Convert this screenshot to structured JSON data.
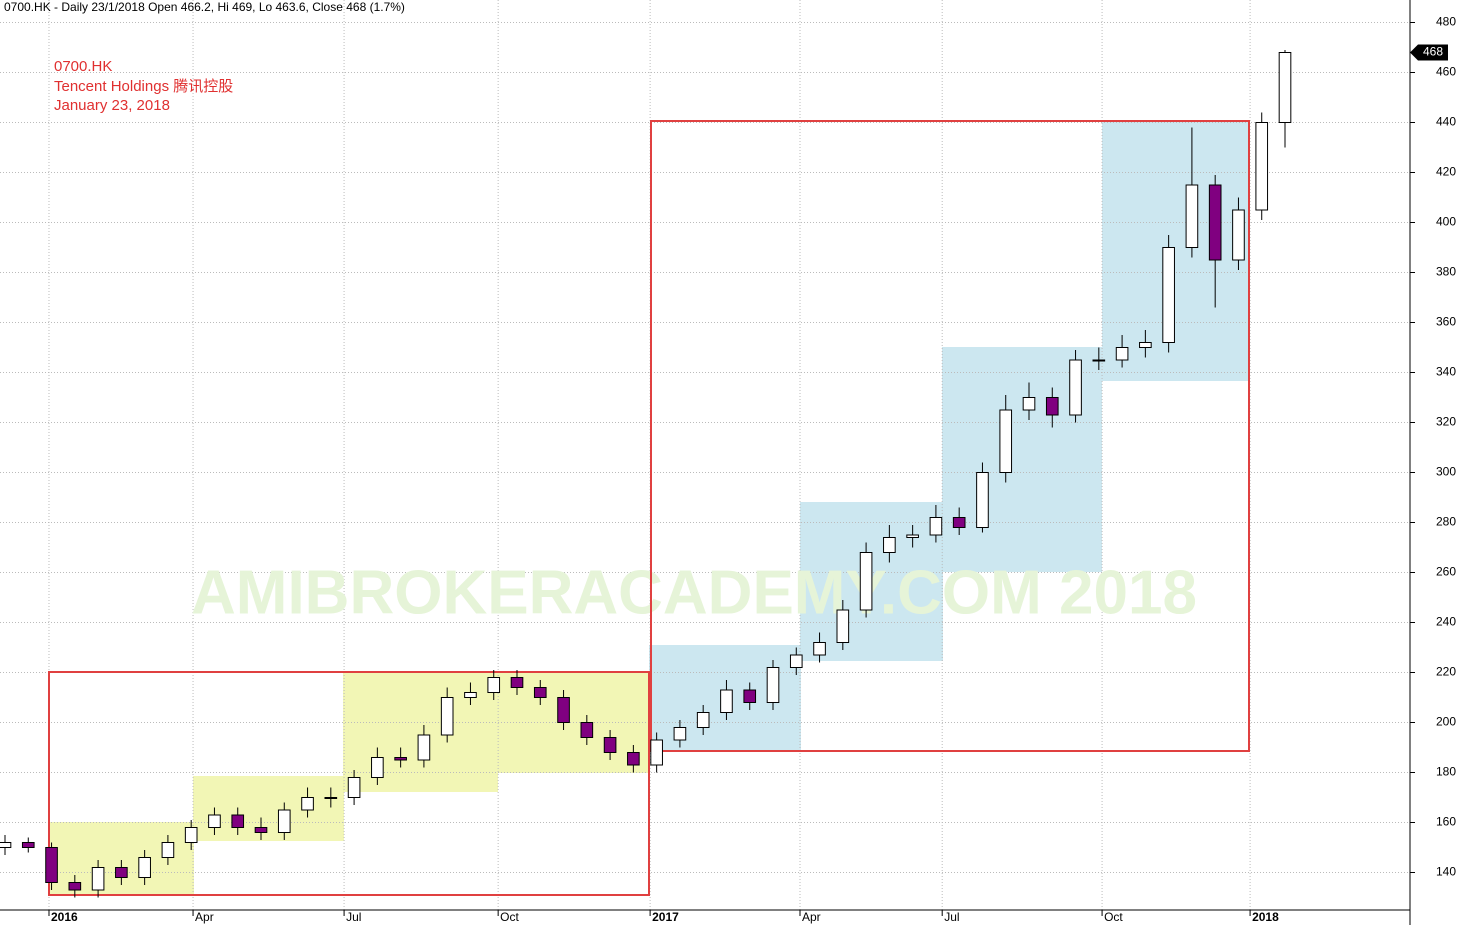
{
  "chart_data": {
    "type": "candlestick",
    "title": "0700.HK - Daily 23/1/2018 Open 466.2, Hi 469, Lo 463.6, Close 468 (1.7%)",
    "annotations": [
      "0700.HK",
      "Tencent Holdings 腾讯控股",
      "January 23, 2018"
    ],
    "watermark": "AMIBROKERACADEMY.COM  2018",
    "categories": [
      null,
      null,
      null,
      null,
      null,
      null,
      null,
      null,
      null,
      null,
      null,
      null,
      null,
      null,
      null,
      null,
      null,
      null,
      null,
      null,
      null,
      null,
      null,
      null,
      null,
      null,
      null,
      null,
      null,
      null,
      null,
      null,
      null,
      null,
      null,
      null,
      null,
      null,
      null,
      null,
      null,
      null,
      null,
      null,
      null,
      null,
      null,
      null,
      null,
      null,
      null,
      null,
      null,
      null,
      null,
      null
    ],
    "open": [
      150,
      152,
      150,
      136,
      133,
      142,
      138,
      146,
      152,
      158,
      163,
      158,
      156,
      165,
      170,
      170,
      178,
      186,
      185,
      195,
      210,
      212,
      218,
      214,
      210,
      200,
      194,
      188,
      183,
      193,
      198,
      204,
      213,
      208,
      222,
      227,
      232,
      245,
      268,
      274,
      275,
      282,
      278,
      300,
      325,
      330,
      323,
      345,
      345,
      350,
      352,
      390,
      415,
      385,
      405,
      440
    ],
    "high": [
      155,
      154,
      152,
      139,
      145,
      145,
      149,
      155,
      161,
      166,
      166,
      162,
      168,
      174,
      174,
      181,
      190,
      190,
      199,
      214,
      216,
      221,
      221,
      217,
      213,
      203,
      197,
      191,
      196,
      201,
      207,
      217,
      216,
      225,
      230,
      236,
      249,
      272,
      279,
      279,
      287,
      286,
      304,
      331,
      336,
      334,
      349,
      350,
      355,
      357,
      395,
      438,
      419,
      410,
      444,
      469
    ],
    "low": [
      147,
      148,
      133,
      130,
      130,
      135,
      135,
      143,
      149,
      155,
      155,
      153,
      153,
      162,
      166,
      167,
      175,
      182,
      182,
      192,
      207,
      209,
      211,
      207,
      197,
      191,
      185,
      180,
      180,
      190,
      195,
      201,
      205,
      205,
      219,
      224,
      229,
      242,
      264,
      270,
      272,
      275,
      276,
      296,
      321,
      318,
      320,
      341,
      342,
      346,
      348,
      386,
      366,
      381,
      401,
      430
    ],
    "close": [
      152,
      150,
      136,
      133,
      142,
      138,
      146,
      152,
      158,
      163,
      158,
      156,
      165,
      170,
      170,
      178,
      186,
      185,
      195,
      210,
      212,
      218,
      214,
      210,
      200,
      194,
      188,
      183,
      193,
      198,
      204,
      213,
      208,
      222,
      227,
      232,
      245,
      268,
      274,
      275,
      282,
      278,
      300,
      325,
      330,
      323,
      345,
      345,
      350,
      352,
      390,
      415,
      385,
      405,
      440,
      468
    ],
    "up_color": "#ffffff",
    "down_color": "#800080",
    "ylim": [
      125,
      489
    ],
    "yticks": [
      140,
      160,
      180,
      200,
      220,
      240,
      260,
      280,
      300,
      320,
      340,
      360,
      380,
      400,
      420,
      440,
      460,
      480
    ],
    "xticks": [
      {
        "value": 1.89,
        "label": "2016"
      },
      {
        "value": 8.08,
        "label": "Apr"
      },
      {
        "value": 14.57,
        "label": "Jul"
      },
      {
        "value": 21.19,
        "label": "Oct"
      },
      {
        "value": 27.72,
        "label": "2017"
      },
      {
        "value": 34.16,
        "label": "Apr"
      },
      {
        "value": 40.27,
        "label": "Jul"
      },
      {
        "value": 47.14,
        "label": "Oct"
      },
      {
        "value": 53.5,
        "label": "2018"
      }
    ],
    "grid": true
  }
}
